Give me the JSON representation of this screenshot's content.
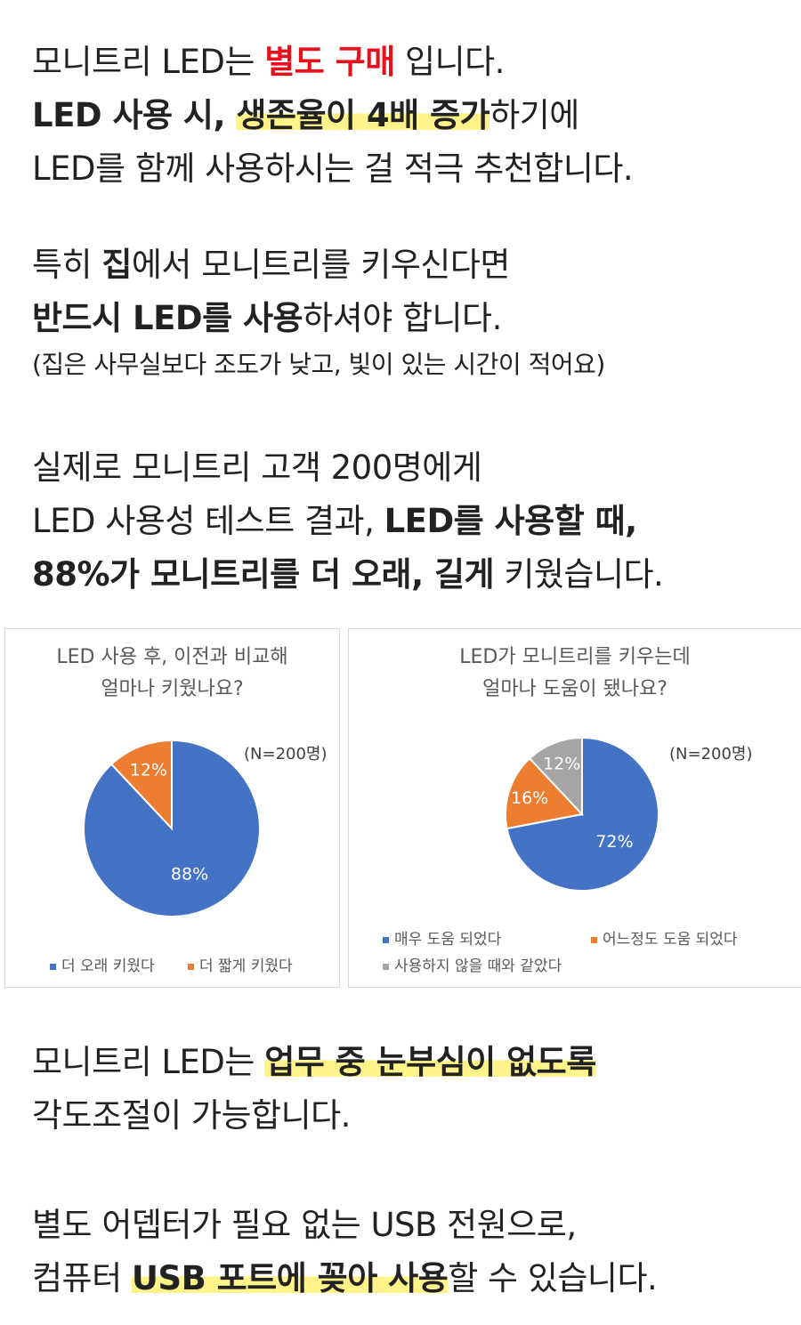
{
  "intro": {
    "l1a": "모니트리 LED는 ",
    "l1b": "별도 구매",
    "l1c": " 입니다.",
    "l2a": "LED 사용 시, ",
    "l2b": "생존율이 4배 증가",
    "l2c": "하기에",
    "l3": "LED를 함께 사용하시는 걸 적극 추천합니다."
  },
  "home": {
    "l1a": "특히 ",
    "l1b": "집",
    "l1c": "에서 모니트리를 키우신다면",
    "l2a": "반드시 LED를 사용",
    "l2b": "하셔야 합니다.",
    "l3": "(집은 사무실보다 조도가 낮고, 빛이 있는 시간이 적어요)"
  },
  "test": {
    "l1": "실제로 모니트리 고객 200명에게",
    "l2a": "LED 사용성 테스트 결과, ",
    "l2b": "LED를 사용할 때,",
    "l3a": "88%가 모니트리를 더 오래, 길게",
    "l3b": " 키웠습니다."
  },
  "colors": {
    "blue": "#4472c4",
    "orange": "#ed7d31",
    "gray": "#a5a5a5",
    "accent_red": "#e8101a",
    "highlight": "#fff38a"
  },
  "chart_data": [
    {
      "type": "pie",
      "title_line1": "LED 사용 후, 이전과 비교해",
      "title_line2": "얼마나 키웠나요?",
      "note": "(N=200명)",
      "series": [
        {
          "name": "더 오래 키웠다",
          "value": 88,
          "label": "88%",
          "color": "#4472c4"
        },
        {
          "name": "더 짧게 키웠다",
          "value": 12,
          "label": "12%",
          "color": "#ed7d31"
        }
      ],
      "legend": "bottom"
    },
    {
      "type": "pie",
      "title_line1": "LED가 모니트리를 키우는데",
      "title_line2": "얼마나 도움이 됐나요?",
      "note": "(N=200명)",
      "series": [
        {
          "name": "매우 도움 되었다",
          "value": 72,
          "label": "72%",
          "color": "#4472c4"
        },
        {
          "name": "어느정도 도움 되었다",
          "value": 16,
          "label": "16%",
          "color": "#ed7d31"
        },
        {
          "name": "사용하지 않을 때와 같았다",
          "value": 12,
          "label": "12%",
          "color": "#a5a5a5"
        }
      ],
      "legend": "bottom"
    }
  ],
  "angle": {
    "l1a": "모니트리 LED는 ",
    "l1b": "업무 중 눈부심이 없도록",
    "l2": "각도조절이 가능합니다."
  },
  "usb": {
    "l1": "별도 어뎁터가 필요 없는 USB 전원으로,",
    "l2a": "컴퓨터 ",
    "l2b": "USB 포트에 꽂아 사용",
    "l2c": "할 수 있습니다."
  }
}
